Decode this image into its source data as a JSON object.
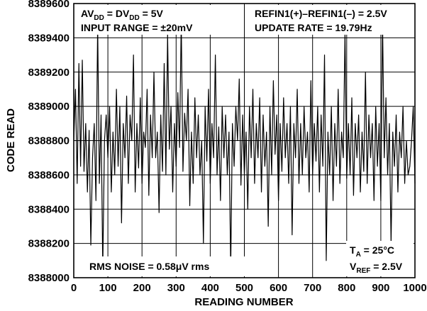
{
  "chart_data": {
    "type": "line",
    "xlabel": "READING NUMBER",
    "ylabel": "CODE READ",
    "xlim": [
      0,
      1000
    ],
    "ylim": [
      8388000,
      8389600
    ],
    "x_ticks": [
      "0",
      "100",
      "200",
      "300",
      "400",
      "500",
      "600",
      "700",
      "800",
      "900",
      "1000"
    ],
    "y_ticks": [
      "8388000",
      "8388200",
      "8388400",
      "8388600",
      "8388800",
      "8389000",
      "8389200",
      "8389400",
      "8389600"
    ],
    "grid": true,
    "line_color": "#000000",
    "annotations": {
      "supply": {
        "av": "AV",
        "av_sub": "DD",
        "eq": " = DV",
        "dv_sub": "DD",
        "val": " = 5V"
      },
      "input_range": "INPUT RANGE = ±20mV",
      "refin": "REFIN1(+)–REFIN1(–) = 2.5V",
      "update_rate": "UPDATE RATE = 19.79Hz",
      "rms_noise": "RMS NOISE = 0.58μV rms",
      "temp": {
        "t": "T",
        "sub": "A",
        "val": " = 25°C"
      },
      "vref": {
        "v": "V",
        "sub": "REF",
        "val": " = 2.5V"
      }
    },
    "series": [
      {
        "x_start": 0,
        "x_step": 5,
        "y": [
          8388800,
          8389100,
          8388550,
          8389250,
          8388650,
          8389270,
          8388620,
          8388900,
          8388500,
          8388860,
          8388190,
          8388700,
          8388900,
          8388450,
          8389480,
          8388550,
          8388950,
          8388050,
          8388800,
          8388950,
          8388700,
          8389000,
          8388500,
          8388850,
          8388600,
          8389100,
          8388650,
          8389000,
          8388320,
          8388900,
          8388700,
          8389060,
          8388550,
          8388950,
          8388800,
          8389300,
          8388500,
          8388900,
          8388640,
          8389050,
          8388550,
          8388850,
          8388760,
          8389100,
          8388480,
          8388950,
          8388700,
          8389200,
          8388700,
          8388850,
          8388380,
          8388950,
          8388620,
          8389250,
          8388600,
          8389420,
          8388750,
          8389000,
          8388500,
          8388900,
          8388650,
          8389080,
          8388760,
          8389500,
          8388620,
          8388960,
          8388800,
          8389100,
          8388420,
          8388850,
          8388550,
          8389050,
          8388700,
          8388950,
          8388600,
          8388800,
          8388200,
          8389000,
          8388680,
          8389100,
          8388550,
          8388900,
          8388700,
          8389300,
          8388600,
          8388880,
          8388450,
          8389000,
          8388700,
          8388950,
          8388600,
          8388850,
          8388050,
          8388900,
          8388650,
          8389000,
          8388800,
          8389160,
          8388540,
          8388950,
          8388600,
          8388850,
          8388400,
          8389000,
          8388700,
          8389100,
          8388550,
          8388900,
          8388700,
          8389050,
          8388500,
          8388950,
          8388650,
          8388850,
          8388300,
          8389000,
          8388600,
          8389150,
          8388720,
          8388950,
          8388450,
          8388900,
          8388620,
          8389050,
          8388700,
          8388900,
          8388550,
          8389000,
          8388250,
          8388900,
          8388700,
          8389100,
          8388550,
          8388900,
          8388600,
          8389000,
          8388700,
          8388850,
          8388500,
          8389150,
          8388600,
          8388900,
          8388680,
          8389000,
          8388500,
          8388950,
          8388650,
          8389300,
          8388100,
          8388850,
          8388600,
          8389000,
          8388450,
          8388900,
          8388650,
          8389100,
          8388550,
          8388850,
          8388700,
          8389440,
          8388580,
          8388900,
          8388600,
          8389050,
          8388480,
          8388900,
          8388700,
          8388950,
          8388500,
          8388850,
          8388620,
          8389200,
          8388550,
          8388950,
          8388700,
          8388900,
          8388450,
          8389000,
          8388650,
          8388900,
          8388450,
          8389500,
          8388700,
          8389050,
          8388600,
          8388900,
          8388200,
          8388850,
          8388650,
          8388950,
          8388500,
          8388850,
          8388700,
          8389000,
          8388550,
          8388800,
          8388600,
          8388650,
          8388800,
          8389000,
          8388550
        ]
      }
    ]
  }
}
